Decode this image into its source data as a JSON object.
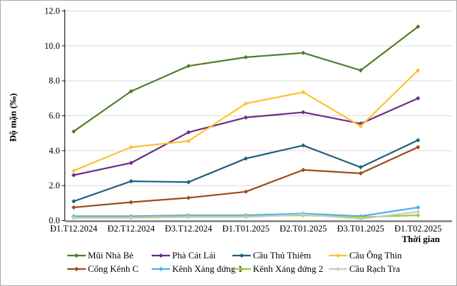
{
  "chart_data": {
    "type": "line",
    "title": "",
    "xlabel": "Thời gian",
    "ylabel": "Độ mặn (‰)",
    "ylim": [
      0,
      12
    ],
    "ytick_step": 2,
    "ytick_labels": [
      "0.0",
      "2.0",
      "4.0",
      "6.0",
      "8.0",
      "10.0",
      "12.0"
    ],
    "grid": true,
    "legend_position": "bottom",
    "categories": [
      "Đ1.T12.2024",
      "Đ2.T12.2024",
      "Đ3.T12.2024",
      "Đ1.T01.2025",
      "Đ2.T01.2025",
      "Đ3.T01.2025",
      "Đ1.T02.2025"
    ],
    "series": [
      {
        "name": "Mũi Nhà Bè",
        "color": "#4e7d28",
        "values": [
          5.1,
          7.4,
          8.85,
          9.35,
          9.6,
          8.6,
          11.1
        ]
      },
      {
        "name": "Phà Cát Lái",
        "color": "#6a2c84",
        "values": [
          2.6,
          3.3,
          5.05,
          5.9,
          6.2,
          5.55,
          7.0
        ]
      },
      {
        "name": "Cầu Thủ Thiêm",
        "color": "#205f80",
        "values": [
          1.1,
          2.25,
          2.2,
          3.55,
          4.3,
          3.05,
          4.6
        ]
      },
      {
        "name": "Cầu Ông Thin",
        "color": "#fcc22d",
        "values": [
          2.85,
          4.2,
          4.55,
          6.7,
          7.35,
          5.4,
          8.6
        ]
      },
      {
        "name": "Cống Kênh C",
        "color": "#9d4a18",
        "values": [
          0.75,
          1.05,
          1.3,
          1.65,
          2.9,
          2.7,
          4.2
        ]
      },
      {
        "name": "Kênh Xáng đứng 1",
        "color": "#47b1ea",
        "values": [
          0.25,
          0.25,
          0.3,
          0.3,
          0.4,
          0.25,
          0.75
        ]
      },
      {
        "name": "Kênh Xáng đứng 2",
        "color": "#9dca3a",
        "values": [
          0.2,
          0.2,
          0.25,
          0.25,
          0.3,
          0.2,
          0.3
        ]
      },
      {
        "name": "Cầu Rạch Tra",
        "color": "#c9c9c9",
        "values": [
          0.15,
          0.15,
          0.2,
          0.2,
          0.35,
          0.1,
          0.5
        ]
      }
    ],
    "axis_colors": {
      "grid": "#d9d9d9",
      "y_axis": "#000000",
      "x_axis": "#7f7f7f",
      "text": "#000000"
    }
  }
}
